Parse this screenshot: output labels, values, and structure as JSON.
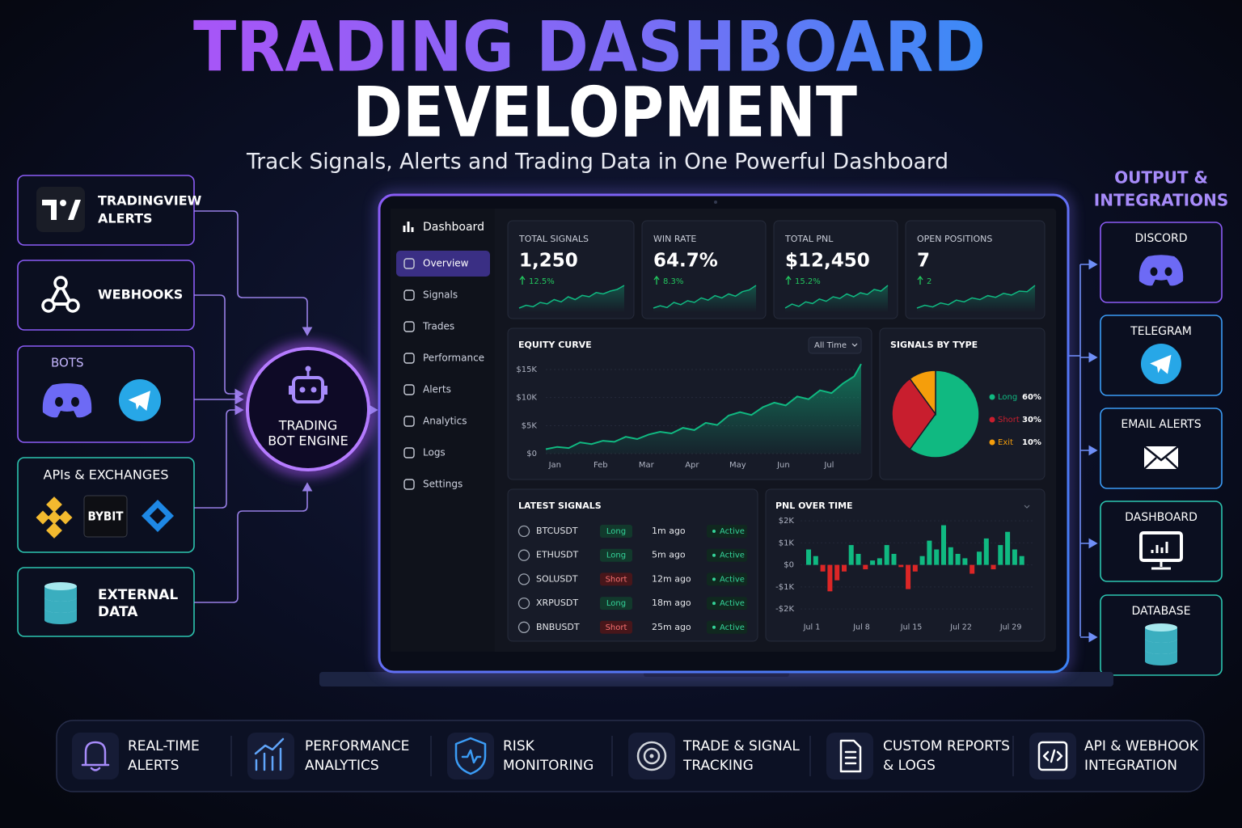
{
  "header": {
    "title": "TRADING DASHBOARD",
    "title_2": "DEVELOPMENT",
    "subtitle": "Track Signals, Alerts and Trading Data in One Powerful Dashboard"
  },
  "inputs": [
    {
      "lines": [
        "TRADINGVIEW",
        "ALERTS"
      ]
    },
    {
      "lines": [
        "WEBHOOKS"
      ]
    },
    {
      "lines": [
        "BOTS"
      ]
    },
    {
      "lines": [
        "APIs & EXCHANGES"
      ],
      "logo_text": "BYBIT"
    },
    {
      "lines": [
        "EXTERNAL",
        "DATA"
      ]
    }
  ],
  "engine": {
    "lines": [
      "TRADING",
      "BOT ENGINE"
    ]
  },
  "outputs": {
    "title": [
      "OUTPUT &",
      "INTEGRATIONS"
    ],
    "items": [
      "DISCORD",
      "TELEGRAM",
      "EMAIL ALERTS",
      "DASHBOARD",
      "DATABASE"
    ]
  },
  "dashboard": {
    "sidebar": {
      "title": "Dashboard",
      "items": [
        "Overview",
        "Signals",
        "Trades",
        "Performance",
        "Alerts",
        "Analytics",
        "Logs",
        "Settings"
      ],
      "active": 0
    },
    "kpis": [
      {
        "label": "TOTAL SIGNALS",
        "value": "1,250",
        "change": "12.5%",
        "spark": [
          2,
          3,
          2.5,
          4,
          3.5,
          5,
          4.2,
          6,
          5,
          6.5,
          6,
          7.5,
          7,
          8,
          8.6,
          10
        ]
      },
      {
        "label": "WIN RATE",
        "value": "64.7%",
        "change": "8.3%",
        "spark": [
          2,
          2.8,
          2.2,
          4,
          3.2,
          4.6,
          4,
          5.6,
          4.8,
          6.4,
          5.6,
          7,
          6.2,
          7.8,
          8.4,
          10
        ]
      },
      {
        "label": "TOTAL PNL",
        "value": "$12,450",
        "change": "15.2%",
        "spark": [
          2,
          3.4,
          2.6,
          4.2,
          3.6,
          5.2,
          4.4,
          6,
          5.4,
          7,
          6,
          7.4,
          6.8,
          8.6,
          8,
          10
        ]
      },
      {
        "label": "OPEN POSITIONS",
        "value": "7",
        "change": "2",
        "spark": [
          2,
          3,
          2.4,
          3.8,
          3.2,
          4.8,
          4.2,
          5.6,
          5,
          6.4,
          5.8,
          7.2,
          6.6,
          8,
          7.8,
          10
        ]
      }
    ],
    "spark_color": "#10b981",
    "equity": {
      "type": "area",
      "title": "EQUITY CURVE",
      "range": "All Time",
      "color": "#10b981",
      "x": [
        -0.2,
        0.05,
        0.3,
        0.55,
        0.8,
        1.05,
        1.3,
        1.55,
        1.8,
        2.05,
        2.3,
        2.55,
        2.8,
        3.05,
        3.3,
        3.55,
        3.8,
        4.05,
        4.3,
        4.55,
        4.8,
        5.05,
        5.3,
        5.55,
        5.8,
        6.05,
        6.3,
        6.55,
        6.7
      ],
      "values": [
        800,
        1200,
        1000,
        2000,
        1700,
        2300,
        2100,
        3000,
        2600,
        3400,
        3900,
        3600,
        4600,
        4200,
        5500,
        5100,
        6800,
        7400,
        6900,
        8300,
        9100,
        8600,
        10200,
        9700,
        11300,
        10800,
        12500,
        13800,
        16000
      ],
      "xlim": [
        -0.2,
        6.7
      ],
      "xticks": [
        {
          "value": 0,
          "label": "Jan"
        },
        {
          "value": 1,
          "label": "Feb"
        },
        {
          "value": 2,
          "label": "Mar"
        },
        {
          "value": 3,
          "label": "Apr"
        },
        {
          "value": 4,
          "label": "May"
        },
        {
          "value": 5,
          "label": "Jun"
        },
        {
          "value": 6,
          "label": "Jul"
        }
      ],
      "ylim": [
        0,
        16500
      ],
      "yticks": [
        {
          "value": 0,
          "label": "$0"
        },
        {
          "value": 5000,
          "label": "$5K"
        },
        {
          "value": 10000,
          "label": "$10K"
        },
        {
          "value": 15000,
          "label": "$15K"
        }
      ],
      "grid": true
    },
    "pie": {
      "type": "pie",
      "title": "SIGNALS BY TYPE",
      "categories": [
        "Long",
        "Short",
        "Exit"
      ],
      "values": [
        60,
        30,
        10
      ],
      "value_labels": [
        "60%",
        "30%",
        "10%"
      ],
      "colors": [
        "#10b981",
        "#c81e2e",
        "#f59e0b"
      ]
    },
    "signals": {
      "title": "LATEST SIGNALS",
      "rows": [
        [
          "BTCUSDT",
          "Long",
          "1m ago",
          "Active"
        ],
        [
          "ETHUSDT",
          "Long",
          "5m ago",
          "Active"
        ],
        [
          "SOLUSDT",
          "Short",
          "12m ago",
          "Active"
        ],
        [
          "XRPUSDT",
          "Long",
          "18m ago",
          "Active"
        ],
        [
          "BNBUSDT",
          "Short",
          "25m ago",
          "Active"
        ]
      ]
    },
    "pnl": {
      "type": "bar",
      "title": "PNL OVER TIME",
      "categories": [
        "Jul 1",
        null,
        null,
        null,
        null,
        null,
        null,
        "Jul 8",
        null,
        null,
        null,
        null,
        null,
        null,
        "Jul 15",
        null,
        null,
        null,
        null,
        null,
        null,
        "Jul 22",
        null,
        null,
        null,
        null,
        null,
        null,
        "Jul 29",
        null,
        null
      ],
      "values": [
        700,
        400,
        -300,
        -1200,
        -700,
        -300,
        900,
        500,
        -200,
        200,
        300,
        900,
        500,
        -100,
        -1100,
        -300,
        400,
        1100,
        700,
        1800,
        800,
        500,
        300,
        -400,
        600,
        1200,
        -200,
        900,
        1500,
        700,
        400
      ],
      "ylim": [
        -2200,
        2200
      ],
      "yticks": [
        {
          "value": 2000,
          "label": "$2K"
        },
        {
          "value": 1000,
          "label": "$1K"
        },
        {
          "value": 0,
          "label": "$0"
        },
        {
          "value": -1000,
          "label": "-$1K"
        },
        {
          "value": -2000,
          "label": "-$2K"
        }
      ],
      "pos_color": "#10b981",
      "neg_color": "#dc2626",
      "grid": true
    }
  },
  "features": [
    [
      "REAL-TIME",
      "ALERTS"
    ],
    [
      "PERFORMANCE",
      "ANALYTICS"
    ],
    [
      "RISK",
      "MONITORING"
    ],
    [
      "TRADE & SIGNAL",
      "TRACKING"
    ],
    [
      "CUSTOM REPORTS",
      "& LOGS"
    ],
    [
      "API & WEBHOOK",
      "INTEGRATION"
    ]
  ]
}
